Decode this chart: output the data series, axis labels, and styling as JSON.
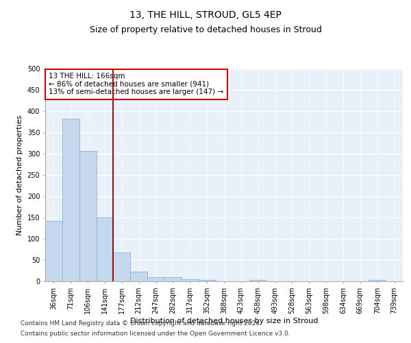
{
  "title": "13, THE HILL, STROUD, GL5 4EP",
  "subtitle": "Size of property relative to detached houses in Stroud",
  "xlabel": "Distribution of detached houses by size in Stroud",
  "ylabel": "Number of detached properties",
  "footer1": "Contains HM Land Registry data © Crown copyright and database right 2024.",
  "footer2": "Contains public sector information licensed under the Open Government Licence v3.0.",
  "bar_labels": [
    "36sqm",
    "71sqm",
    "106sqm",
    "141sqm",
    "177sqm",
    "212sqm",
    "247sqm",
    "282sqm",
    "317sqm",
    "352sqm",
    "388sqm",
    "423sqm",
    "458sqm",
    "493sqm",
    "528sqm",
    "563sqm",
    "598sqm",
    "634sqm",
    "669sqm",
    "704sqm",
    "739sqm"
  ],
  "bar_values": [
    142,
    383,
    307,
    150,
    68,
    22,
    10,
    10,
    5,
    3,
    0,
    0,
    3,
    0,
    0,
    0,
    0,
    0,
    0,
    3,
    0
  ],
  "bar_color": "#c5d8ee",
  "bar_edgecolor": "#7aaed4",
  "vline_color": "#a01010",
  "annotation_text": "13 THE HILL: 166sqm\n← 86% of detached houses are smaller (941)\n13% of semi-detached houses are larger (147) →",
  "annotation_box_color": "#cc0000",
  "ylim": [
    0,
    500
  ],
  "yticks": [
    0,
    50,
    100,
    150,
    200,
    250,
    300,
    350,
    400,
    450,
    500
  ],
  "background_color": "#e8f0fa",
  "grid_color": "#ffffff",
  "title_fontsize": 10,
  "subtitle_fontsize": 9,
  "axis_label_fontsize": 8,
  "tick_fontsize": 7,
  "annotation_fontsize": 7.5,
  "footer_fontsize": 6.5
}
